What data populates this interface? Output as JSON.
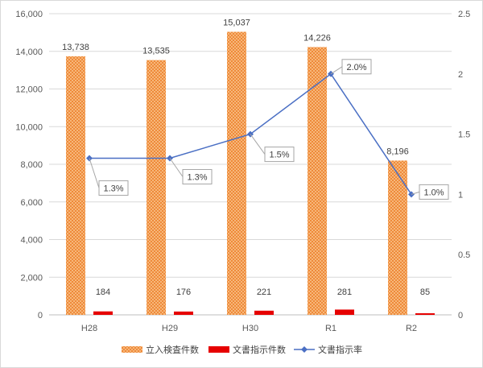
{
  "chart_data": {
    "type": "bar+line",
    "categories": [
      "H28",
      "H29",
      "H30",
      "R1",
      "R2"
    ],
    "series": [
      {
        "name": "立入検査件数",
        "type": "bar",
        "axis": "left",
        "values": [
          13738,
          13535,
          15037,
          14226,
          8196
        ],
        "labels": [
          "13,738",
          "13,535",
          "15,037",
          "14,226",
          "8,196"
        ],
        "color": "#f4a259"
      },
      {
        "name": "文書指示件数",
        "type": "bar",
        "axis": "left",
        "values": [
          184,
          176,
          221,
          281,
          85
        ],
        "labels": [
          "184",
          "176",
          "221",
          "281",
          "85"
        ],
        "color": "#e60000"
      },
      {
        "name": "文書指示率",
        "type": "line",
        "axis": "right",
        "values": [
          1.3,
          1.3,
          1.5,
          2.0,
          1.0
        ],
        "labels": [
          "1.3%",
          "1.3%",
          "1.5%",
          "2.0%",
          "1.0%"
        ],
        "color": "#4a6fc4"
      }
    ],
    "y_left": {
      "min": 0,
      "max": 16000,
      "ticks": [
        "0",
        "2,000",
        "4,000",
        "6,000",
        "8,000",
        "10,000",
        "12,000",
        "14,000",
        "16,000"
      ]
    },
    "y_right": {
      "min": 0,
      "max": 2.5,
      "ticks": [
        "0",
        "0.5",
        "1",
        "1.5",
        "2",
        "2.5"
      ]
    },
    "grid": true,
    "legend_position": "bottom"
  }
}
